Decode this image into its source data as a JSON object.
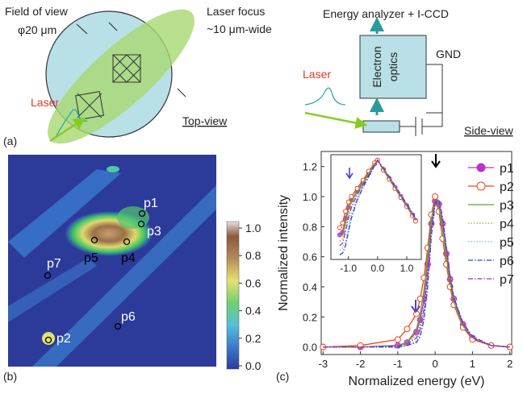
{
  "panel_a": {
    "label": "(a)",
    "field_of_view": "Field of view",
    "fov_size": "φ20 μm",
    "laser_focus": "Laser focus",
    "focus_width": "~10 μm-wide",
    "laser_top": "Laser",
    "top_view": "Top-view",
    "analyzer": "Energy analyzer + I-CCD",
    "optics_1": "Electron",
    "optics_2": "optics",
    "gnd": "GND",
    "laser_side": "Laser",
    "side_view": "Side-view"
  },
  "panel_b": {
    "label": "(b)",
    "points": [
      "p1",
      "p2",
      "p3",
      "p4",
      "p5",
      "p6",
      "p7"
    ],
    "colorbar_ticks": [
      "0.0",
      "0.2",
      "0.4",
      "0.6",
      "0.8",
      "1.0"
    ]
  },
  "panel_c": {
    "label": "(c)"
  },
  "chart_data": [
    {
      "type": "line",
      "xlabel": "Normalized energy (eV)",
      "ylabel": "Normalized intensity",
      "x": [
        -3,
        -2,
        -1,
        -0.75,
        -0.5,
        -0.4,
        -0.3,
        -0.2,
        -0.1,
        0,
        0.1,
        0.2,
        0.3,
        0.4,
        0.5,
        0.75,
        1,
        1.5,
        2
      ],
      "xlim": [
        -3.05,
        2.05
      ],
      "ylim": [
        -0.05,
        1.3
      ],
      "xticks": [
        -3,
        -2,
        -1,
        0,
        1,
        2
      ],
      "yticks": [
        {
          "value": 0,
          "label": "0.0"
        },
        {
          "value": 0.2,
          "label": "0.2"
        },
        {
          "value": 0.4,
          "label": "0.4"
        },
        {
          "value": 0.6,
          "label": "0.6"
        },
        {
          "value": 0.8,
          "label": "0.8"
        },
        {
          "value": 1,
          "label": "1.0"
        },
        {
          "value": 1.2,
          "label": "1.2"
        }
      ],
      "legend": "outside-right",
      "series": [
        {
          "name": "p1",
          "color": "#c030c8",
          "style": "solid",
          "marker": "filled",
          "values": [
            0,
            0,
            0.01,
            0.03,
            0.1,
            0.18,
            0.32,
            0.55,
            0.82,
            0.97,
            0.95,
            0.82,
            0.62,
            0.45,
            0.32,
            0.15,
            0.06,
            0.01,
            0
          ]
        },
        {
          "name": "p2",
          "color": "#f04418",
          "style": "solid",
          "marker": "open",
          "values": [
            0,
            0.01,
            0.05,
            0.12,
            0.22,
            0.32,
            0.46,
            0.66,
            0.88,
            1.0,
            0.9,
            0.72,
            0.55,
            0.4,
            0.28,
            0.13,
            0.05,
            0.01,
            0
          ]
        },
        {
          "name": "p3",
          "color": "#55aa33",
          "style": "solid",
          "values": [
            0,
            0,
            0.01,
            0.03,
            0.12,
            0.22,
            0.38,
            0.6,
            0.85,
            0.98,
            0.93,
            0.78,
            0.6,
            0.43,
            0.3,
            0.14,
            0.06,
            0.01,
            0
          ]
        },
        {
          "name": "p4",
          "color": "#a8a040",
          "style": "dotted",
          "values": [
            0,
            0,
            0.01,
            0.02,
            0.08,
            0.15,
            0.28,
            0.5,
            0.8,
            0.97,
            0.96,
            0.83,
            0.64,
            0.46,
            0.32,
            0.15,
            0.06,
            0.01,
            0
          ]
        },
        {
          "name": "p5",
          "color": "#66bbdd",
          "style": "dotted",
          "values": [
            0,
            0,
            0,
            0.01,
            0.04,
            0.1,
            0.22,
            0.45,
            0.78,
            0.96,
            0.97,
            0.85,
            0.66,
            0.47,
            0.33,
            0.15,
            0.06,
            0.01,
            0
          ]
        },
        {
          "name": "p6",
          "color": "#3344cc",
          "style": "dash-dot",
          "values": [
            0,
            0,
            0,
            0.01,
            0.03,
            0.07,
            0.18,
            0.4,
            0.74,
            0.95,
            0.98,
            0.86,
            0.67,
            0.48,
            0.33,
            0.16,
            0.07,
            0.01,
            0
          ]
        },
        {
          "name": "p7",
          "color": "#9933bb",
          "style": "dash-dot",
          "values": [
            0,
            0,
            0.01,
            0.02,
            0.06,
            0.12,
            0.25,
            0.48,
            0.8,
            0.97,
            0.96,
            0.84,
            0.65,
            0.46,
            0.32,
            0.15,
            0.06,
            0.01,
            0
          ]
        }
      ]
    },
    {
      "type": "line",
      "x": [
        -1.3,
        -1.2,
        -1.1,
        -1.0,
        -0.9,
        -0.7,
        -0.5,
        -0.3,
        -0.1,
        0,
        0.2,
        0.4,
        0.6,
        0.8,
        1.0,
        1.2,
        1.3
      ],
      "xlim": [
        -1.6,
        1.5
      ],
      "ylim": [
        0.15,
        1.3
      ],
      "xticks": [
        {
          "value": -1,
          "label": "-1.0"
        },
        {
          "value": 0,
          "label": "0.0"
        },
        {
          "value": 1,
          "label": "1.0"
        }
      ],
      "series": [
        {
          "color": "#c030c8",
          "style": "solid",
          "marker": "filled",
          "values": [
            0.42,
            0.45,
            0.6,
            0.72,
            0.8,
            0.9,
            1.0,
            1.1,
            1.2,
            1.24,
            1.14,
            1.04,
            0.94,
            0.84,
            0.74,
            0.64,
            0.58
          ]
        },
        {
          "color": "#f04418",
          "style": "solid",
          "marker": "open",
          "values": [
            0.5,
            0.55,
            0.68,
            0.78,
            0.84,
            0.93,
            1.02,
            1.12,
            1.21,
            1.24,
            1.13,
            1.03,
            0.93,
            0.83,
            0.73,
            0.63,
            0.57
          ]
        },
        {
          "color": "#55aa33",
          "style": "solid",
          "values": [
            0.4,
            0.42,
            0.55,
            0.7,
            0.79,
            0.89,
            0.99,
            1.1,
            1.2,
            1.24,
            1.14,
            1.04,
            0.94,
            0.84,
            0.74,
            0.64,
            0.58
          ]
        },
        {
          "color": "#a8a040",
          "style": "dotted",
          "values": [
            0.35,
            0.38,
            0.5,
            0.65,
            0.76,
            0.87,
            0.98,
            1.09,
            1.2,
            1.24,
            1.15,
            1.05,
            0.95,
            0.85,
            0.75,
            0.65,
            0.59
          ]
        },
        {
          "color": "#66bbdd",
          "style": "dotted",
          "values": [
            0.25,
            0.28,
            0.35,
            0.5,
            0.65,
            0.82,
            0.95,
            1.07,
            1.19,
            1.24,
            1.15,
            1.05,
            0.95,
            0.85,
            0.75,
            0.65,
            0.59
          ]
        },
        {
          "color": "#3344cc",
          "style": "dash-dot",
          "values": [
            0.2,
            0.22,
            0.3,
            0.45,
            0.6,
            0.8,
            0.94,
            1.06,
            1.18,
            1.24,
            1.15,
            1.06,
            0.96,
            0.86,
            0.76,
            0.66,
            0.6
          ]
        },
        {
          "color": "#9933bb",
          "style": "dash-dot",
          "values": [
            0.3,
            0.33,
            0.45,
            0.6,
            0.72,
            0.86,
            0.97,
            1.08,
            1.19,
            1.24,
            1.15,
            1.05,
            0.95,
            0.85,
            0.75,
            0.65,
            0.59
          ]
        }
      ]
    }
  ]
}
